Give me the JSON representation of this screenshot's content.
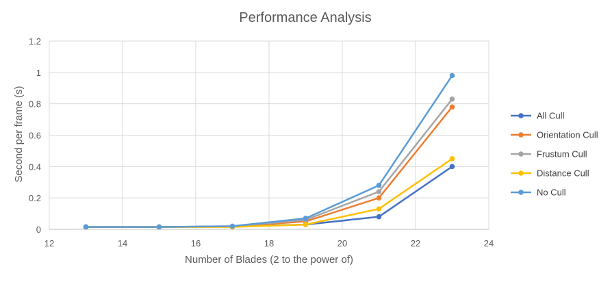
{
  "chart_data": {
    "type": "line",
    "title": "Performance Analysis",
    "xlabel": "Number of Blades (2 to the power of)",
    "ylabel": "Second per frame (s)",
    "xlim": [
      12,
      24
    ],
    "ylim": [
      0,
      1.2
    ],
    "x_ticks": [
      "12",
      "14",
      "16",
      "18",
      "20",
      "22",
      "24"
    ],
    "y_ticks": [
      "0",
      "0.2",
      "0.4",
      "0.6",
      "0.8",
      "1",
      "1.2"
    ],
    "grid": true,
    "legend_position": "right",
    "x": [
      13,
      15,
      17,
      19,
      21,
      23
    ],
    "series": [
      {
        "name": "All Cull",
        "color": "#4472C4",
        "values": [
          0.015,
          0.015,
          0.018,
          0.03,
          0.08,
          0.4
        ]
      },
      {
        "name": "Orientation Cull",
        "color": "#ED7D31",
        "values": [
          0.015,
          0.015,
          0.018,
          0.05,
          0.2,
          0.78
        ]
      },
      {
        "name": "Frustum Cull",
        "color": "#A5A5A5",
        "values": [
          0.015,
          0.015,
          0.018,
          0.06,
          0.24,
          0.83
        ]
      },
      {
        "name": "Distance Cull",
        "color": "#FFC000",
        "values": [
          0.015,
          0.015,
          0.015,
          0.03,
          0.13,
          0.45
        ]
      },
      {
        "name": "No Cull",
        "color": "#5B9BD5",
        "values": [
          0.015,
          0.015,
          0.02,
          0.07,
          0.28,
          0.98
        ]
      }
    ]
  }
}
